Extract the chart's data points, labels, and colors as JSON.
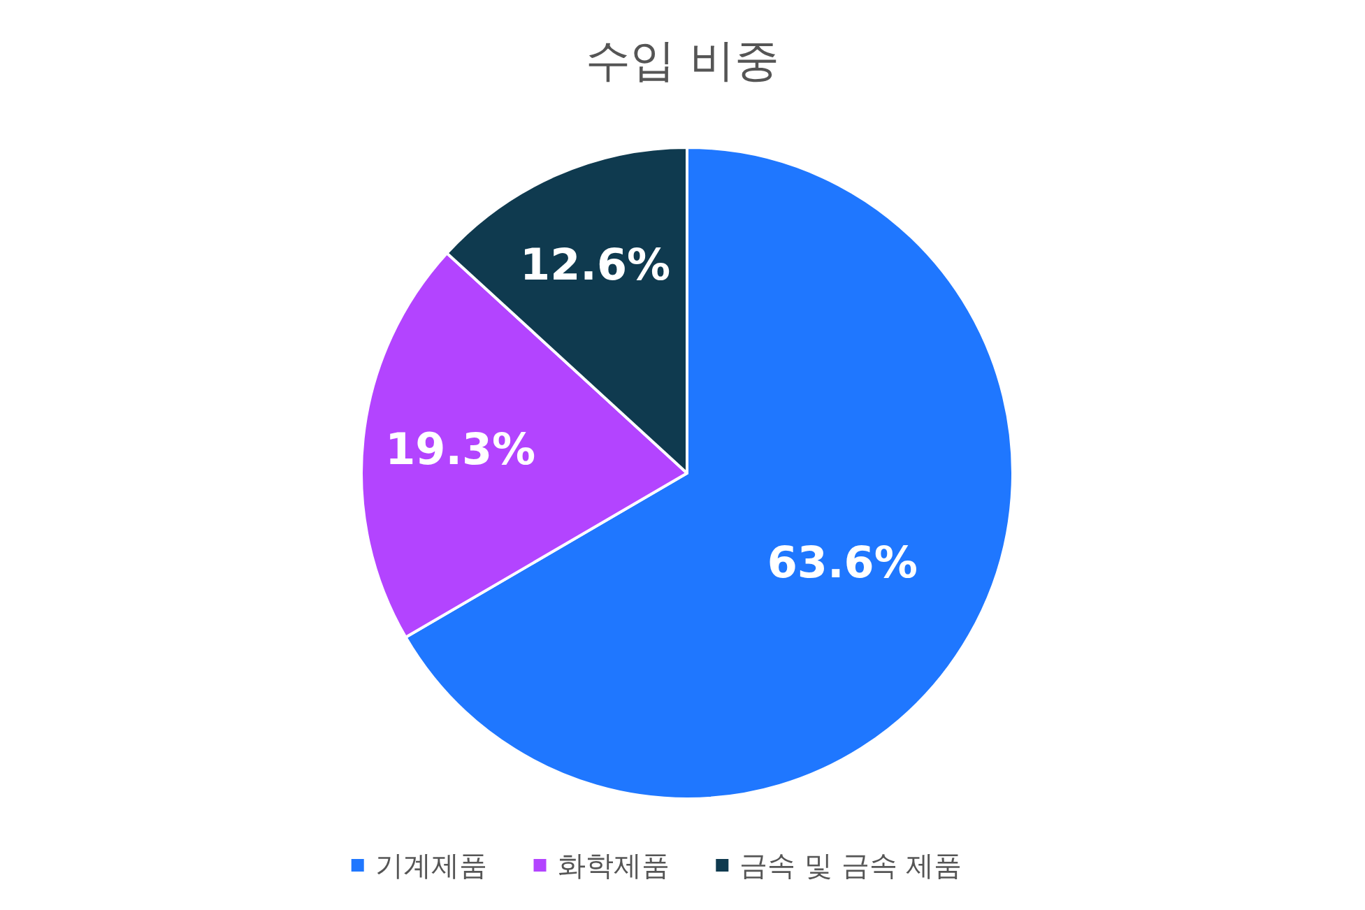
{
  "chart_data": {
    "type": "pie",
    "title": "수입 비중",
    "categories": [
      "기계제품",
      "화학제품",
      "금속 및 금속 제품"
    ],
    "values": [
      63.6,
      19.3,
      12.6
    ],
    "value_labels": [
      "63.6%",
      "19.3%",
      "12.6%"
    ],
    "colors": [
      "#1f77ff",
      "#b344ff",
      "#0f3a4f"
    ],
    "legend": "bottom"
  }
}
